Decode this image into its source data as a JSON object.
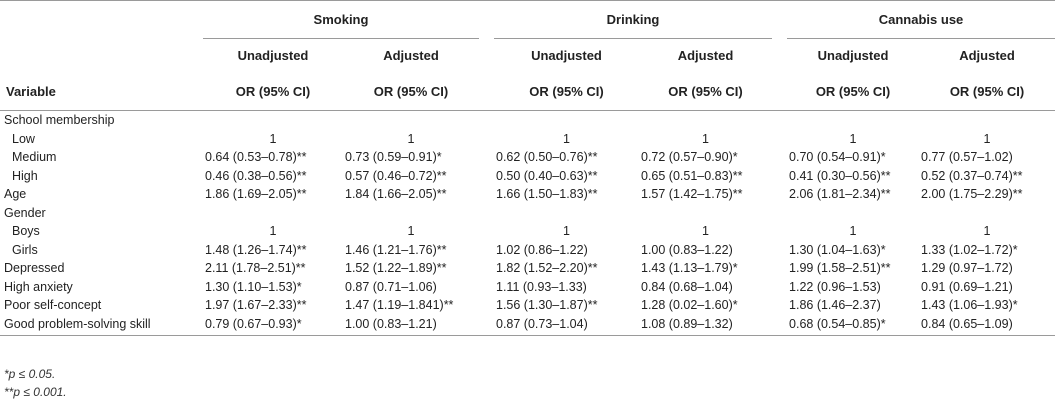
{
  "groups": [
    "Smoking",
    "Drinking",
    "Cannabis use"
  ],
  "sub": [
    "Unadjusted",
    "Adjusted"
  ],
  "var_header": "Variable",
  "or_header": "OR (95% CI)",
  "rows": [
    {
      "label": "School membership",
      "indent": false,
      "cells": [
        "",
        "",
        "",
        "",
        "",
        ""
      ]
    },
    {
      "label": "Low",
      "indent": true,
      "ref": true,
      "cells": [
        "1",
        "1",
        "1",
        "1",
        "1",
        "1"
      ]
    },
    {
      "label": "Medium",
      "indent": true,
      "cells": [
        "0.64 (0.53–0.78)**",
        "0.73 (0.59–0.91)*",
        "0.62 (0.50–0.76)**",
        "0.72 (0.57–0.90)*",
        "0.70 (0.54–0.91)*",
        "0.77 (0.57–1.02)"
      ]
    },
    {
      "label": "High",
      "indent": true,
      "cells": [
        "0.46 (0.38–0.56)**",
        "0.57 (0.46–0.72)**",
        "0.50 (0.40–0.63)**",
        "0.65 (0.51–0.83)**",
        "0.41 (0.30–0.56)**",
        "0.52 (0.37–0.74)**"
      ]
    },
    {
      "label": "Age",
      "indent": false,
      "cells": [
        "1.86 (1.69–2.05)**",
        "1.84 (1.66–2.05)**",
        "1.66 (1.50–1.83)**",
        "1.57 (1.42–1.75)**",
        "2.06 (1.81–2.34)**",
        "2.00 (1.75–2.29)**"
      ]
    },
    {
      "label": "Gender",
      "indent": false,
      "cells": [
        "",
        "",
        "",
        "",
        "",
        ""
      ]
    },
    {
      "label": "Boys",
      "indent": true,
      "ref": true,
      "cells": [
        "1",
        "1",
        "1",
        "1",
        "1",
        "1"
      ]
    },
    {
      "label": "Girls",
      "indent": true,
      "cells": [
        "1.48 (1.26–1.74)**",
        "1.46 (1.21–1.76)**",
        "1.02 (0.86–1.22)",
        "1.00 (0.83–1.22)",
        "1.30 (1.04–1.63)*",
        "1.33 (1.02–1.72)*"
      ]
    },
    {
      "label": "Depressed",
      "indent": false,
      "cells": [
        "2.11 (1.78–2.51)**",
        "1.52 (1.22–1.89)**",
        "1.82 (1.52–2.20)**",
        "1.43 (1.13–1.79)*",
        "1.99 (1.58–2.51)**",
        "1.29 (0.97–1.72)"
      ]
    },
    {
      "label": "High anxiety",
      "indent": false,
      "cells": [
        "1.30 (1.10–1.53)*",
        "0.87 (0.71–1.06)",
        "1.11 (0.93–1.33)",
        "0.84 (0.68–1.04)",
        "1.22 (0.96–1.53)",
        "0.91 (0.69–1.21)"
      ]
    },
    {
      "label": "Poor self-concept",
      "indent": false,
      "cells": [
        "1.97 (1.67–2.33)**",
        "1.47 (1.19–1.841)**",
        "1.56 (1.30–1.87)**",
        "1.28 (0.02–1.60)*",
        "1.86 (1.46–2.37)",
        "1.43 (1.06–1.93)*"
      ]
    },
    {
      "label": "Good problem-solving skill",
      "indent": false,
      "cells": [
        "0.79 (0.67–0.93)*",
        "1.00 (0.83–1.21)",
        "0.87 (0.73–1.04)",
        "1.08 (0.89–1.32)",
        "0.68 (0.54–0.85)*",
        "0.84 (0.65–1.09)"
      ]
    }
  ],
  "notes": [
    "*p ≤ 0.05.",
    "**p ≤ 0.001."
  ]
}
